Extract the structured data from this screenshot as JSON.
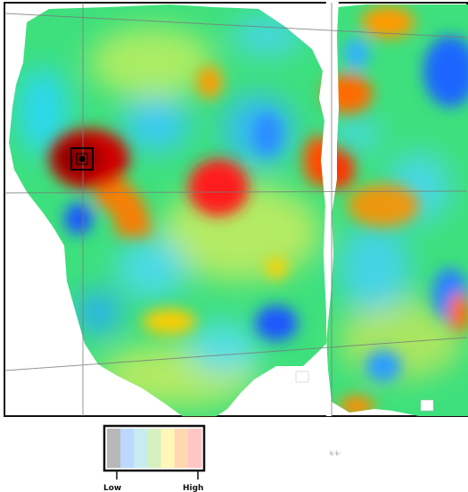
{
  "map": {
    "colors": {
      "background": "#31e07a",
      "dark_red": "#b30000",
      "red": "#ff1a1a",
      "orange": "#ff7a00",
      "yellow": "#ffe600",
      "cyan": "#2ad6ff",
      "light_blue": "#3ab6ff",
      "blue": "#1c57ff",
      "white": "#ffffff",
      "grid": "#7a7a7a",
      "frame": "#111111"
    },
    "marker": {
      "name": "selected-cell-marker",
      "icon": "square-target-icon"
    }
  },
  "legend": {
    "colors": [
      "#b8b8b8",
      "#bcd8ff",
      "#c6ecf0",
      "#d6f0c0",
      "#fff6b8",
      "#ffd8b0",
      "#ffc6c6"
    ],
    "low_label": "Low",
    "high_label": "High"
  },
  "notes": {
    "faint_text": "k·k·"
  }
}
